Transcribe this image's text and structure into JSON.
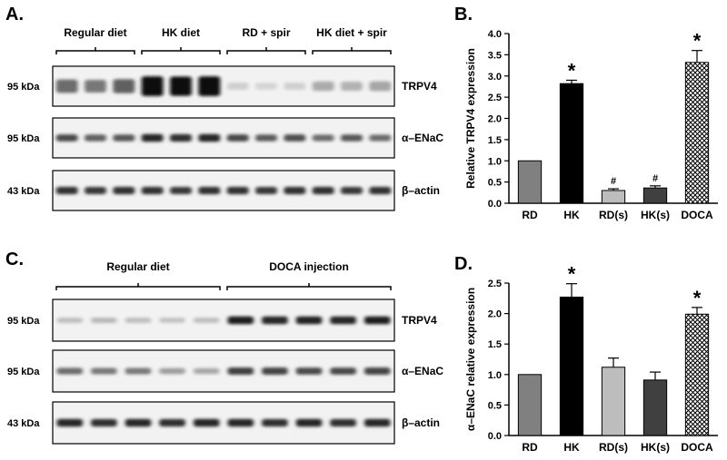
{
  "panels": {
    "A": {
      "letter": "A.",
      "groups": [
        "Regular diet",
        "HK diet",
        "RD + spir",
        "HK diet + spir"
      ],
      "blots": [
        {
          "kda": "95 kDa",
          "label": "TRPV4",
          "intensity": [
            0.55,
            0.5,
            0.6,
            0.98,
            0.95,
            0.98,
            0.12,
            0.1,
            0.12,
            0.28,
            0.25,
            0.3
          ]
        },
        {
          "kda": "95 kDa",
          "label": "α–ENaC",
          "intensity": [
            0.7,
            0.6,
            0.65,
            0.85,
            0.82,
            0.85,
            0.7,
            0.62,
            0.68,
            0.55,
            0.65,
            0.55
          ]
        },
        {
          "kda": "43 kDa",
          "label": "β–actin",
          "intensity": [
            0.8,
            0.78,
            0.8,
            0.8,
            0.78,
            0.8,
            0.8,
            0.78,
            0.8,
            0.8,
            0.78,
            0.8
          ]
        }
      ]
    },
    "C": {
      "letter": "C.",
      "groups": [
        "Regular diet",
        "DOCA injection"
      ],
      "blots": [
        {
          "kda": "95 kDa",
          "label": "TRPV4",
          "intensity": [
            0.2,
            0.22,
            0.2,
            0.18,
            0.2,
            0.9,
            0.85,
            0.88,
            0.85,
            0.9
          ]
        },
        {
          "kda": "95 kDa",
          "label": "α–ENaC",
          "intensity": [
            0.55,
            0.5,
            0.5,
            0.35,
            0.3,
            0.75,
            0.72,
            0.7,
            0.7,
            0.72
          ]
        },
        {
          "kda": "43 kDa",
          "label": "β–actin",
          "intensity": [
            0.85,
            0.82,
            0.85,
            0.82,
            0.85,
            0.85,
            0.82,
            0.85,
            0.82,
            0.85
          ]
        }
      ]
    },
    "B": {
      "letter": "B."
    },
    "D": {
      "letter": "D."
    }
  },
  "chart_data": [
    {
      "type": "bar",
      "panel": "B",
      "categories": [
        "RD",
        "HK",
        "RD(s)",
        "HK(s)",
        "DOCA"
      ],
      "values": [
        1.0,
        2.82,
        0.3,
        0.36,
        3.32
      ],
      "errors": [
        0,
        0.08,
        0.04,
        0.05,
        0.28
      ],
      "annotations": [
        "",
        "*",
        "#",
        "#",
        "*"
      ],
      "fills": [
        "#808080",
        "#000000",
        "#bdbdbd",
        "#404040",
        "crosshatch"
      ],
      "ylabel": "Relative TRPV4 expression",
      "xlabel": "",
      "ylim": [
        0,
        4.0
      ],
      "yticks": [
        "0.0",
        "0.5",
        "1.0",
        "1.5",
        "2.0",
        "2.5",
        "3.0",
        "3.5",
        "4.0"
      ]
    },
    {
      "type": "bar",
      "panel": "D",
      "categories": [
        "RD",
        "HK",
        "RD(s)",
        "HK(s)",
        "DOCA"
      ],
      "values": [
        1.0,
        2.27,
        1.12,
        0.91,
        1.99
      ],
      "errors": [
        0,
        0.22,
        0.15,
        0.13,
        0.11
      ],
      "annotations": [
        "",
        "*",
        "",
        "",
        "*"
      ],
      "fills": [
        "#808080",
        "#000000",
        "#bdbdbd",
        "#404040",
        "crosshatch"
      ],
      "ylabel": "α–ENaC relative expression",
      "xlabel": "",
      "ylim": [
        0,
        2.5
      ],
      "yticks": [
        "0.0",
        "0.5",
        "1.0",
        "1.5",
        "2.0",
        "2.5"
      ]
    }
  ]
}
